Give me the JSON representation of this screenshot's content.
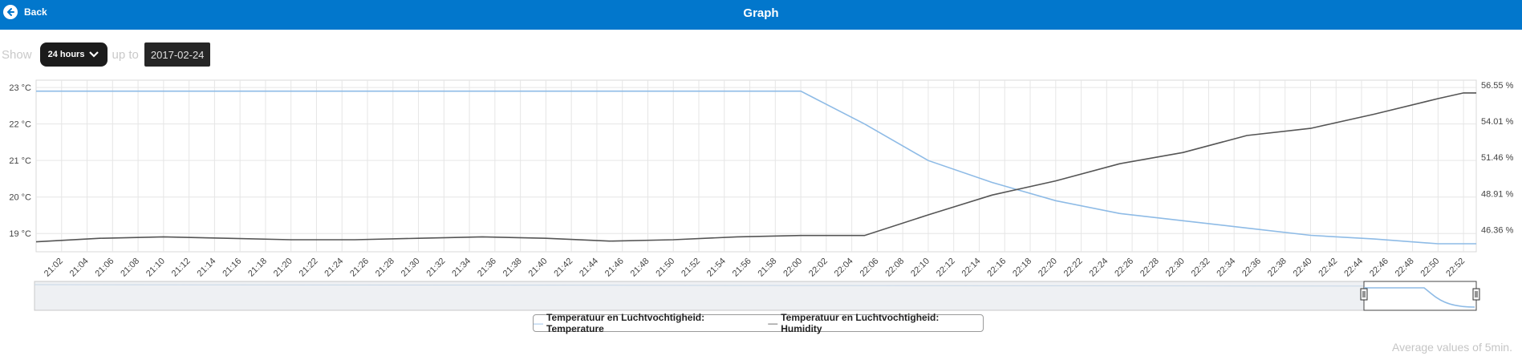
{
  "header": {
    "back_label": "Back",
    "title": "Graph"
  },
  "controls": {
    "show_label": "Show",
    "period_value": "24 hours",
    "up_to_label": "up to",
    "date_value": "2017-02-24"
  },
  "chart_data": {
    "type": "line",
    "x": [
      "21:02",
      "21:04",
      "21:06",
      "21:08",
      "21:10",
      "21:12",
      "21:14",
      "21:16",
      "21:18",
      "21:20",
      "21:22",
      "21:24",
      "21:26",
      "21:28",
      "21:30",
      "21:32",
      "21:34",
      "21:36",
      "21:38",
      "21:40",
      "21:42",
      "21:44",
      "21:46",
      "21:48",
      "21:50",
      "21:52",
      "21:54",
      "21:56",
      "21:58",
      "22:00",
      "22:02",
      "22:04",
      "22:06",
      "22:08",
      "22:10",
      "22:12",
      "22:14",
      "22:16",
      "22:18",
      "22:20",
      "22:22",
      "22:24",
      "22:26",
      "22:28",
      "22:30",
      "22:32",
      "22:34",
      "22:36",
      "22:38",
      "22:40",
      "22:42",
      "22:44",
      "22:46",
      "22:48",
      "22:50",
      "22:52"
    ],
    "y_left": {
      "ticks": [
        "19 °C",
        "20 °C",
        "21 °C",
        "22 °C",
        "23 °C"
      ],
      "range": [
        18.5,
        23.2
      ]
    },
    "y_right": {
      "ticks": [
        "46.36 %",
        "48.91 %",
        "51.46 %",
        "54.01 %",
        "56.55 %"
      ],
      "range": [
        44.8,
        56.9
      ]
    },
    "series": [
      {
        "name": "Temperatuur en Luchtvochtigheid: Temperature",
        "axis": "left",
        "color": "#8ebbe6",
        "points": [
          [
            "21:00",
            22.9
          ],
          [
            "22:00",
            22.9
          ],
          [
            "22:05",
            22.0
          ],
          [
            "22:10",
            21.0
          ],
          [
            "22:15",
            20.4
          ],
          [
            "22:20",
            19.9
          ],
          [
            "22:25",
            19.55
          ],
          [
            "22:30",
            19.35
          ],
          [
            "22:35",
            19.15
          ],
          [
            "22:40",
            18.95
          ],
          [
            "22:45",
            18.85
          ],
          [
            "22:50",
            18.72
          ],
          [
            "22:53",
            18.72
          ]
        ]
      },
      {
        "name": "Temperatuur en Luchtvochtigheid: Humidity",
        "axis": "right",
        "color": "#555555",
        "points": [
          [
            "21:00",
            45.5
          ],
          [
            "21:05",
            45.75
          ],
          [
            "21:10",
            45.85
          ],
          [
            "21:15",
            45.75
          ],
          [
            "21:20",
            45.65
          ],
          [
            "21:25",
            45.65
          ],
          [
            "21:30",
            45.75
          ],
          [
            "21:35",
            45.85
          ],
          [
            "21:40",
            45.75
          ],
          [
            "21:45",
            45.55
          ],
          [
            "21:50",
            45.65
          ],
          [
            "21:55",
            45.85
          ],
          [
            "22:00",
            45.95
          ],
          [
            "22:05",
            45.95
          ],
          [
            "22:10",
            47.4
          ],
          [
            "22:15",
            48.8
          ],
          [
            "22:20",
            49.8
          ],
          [
            "22:25",
            51.0
          ],
          [
            "22:30",
            51.8
          ],
          [
            "22:35",
            53.0
          ],
          [
            "22:40",
            53.5
          ],
          [
            "22:45",
            54.5
          ],
          [
            "22:50",
            55.6
          ],
          [
            "22:52",
            56.0
          ],
          [
            "22:53",
            56.0
          ]
        ]
      }
    ],
    "grid": true,
    "legend_position": "bottom"
  },
  "legend": {
    "temp_label": "Temperatuur en Luchtvochtigheid: Temperature",
    "hum_label": "Temperatuur en Luchtvochtigheid: Humidity"
  },
  "footnote": "Average values of 5min."
}
